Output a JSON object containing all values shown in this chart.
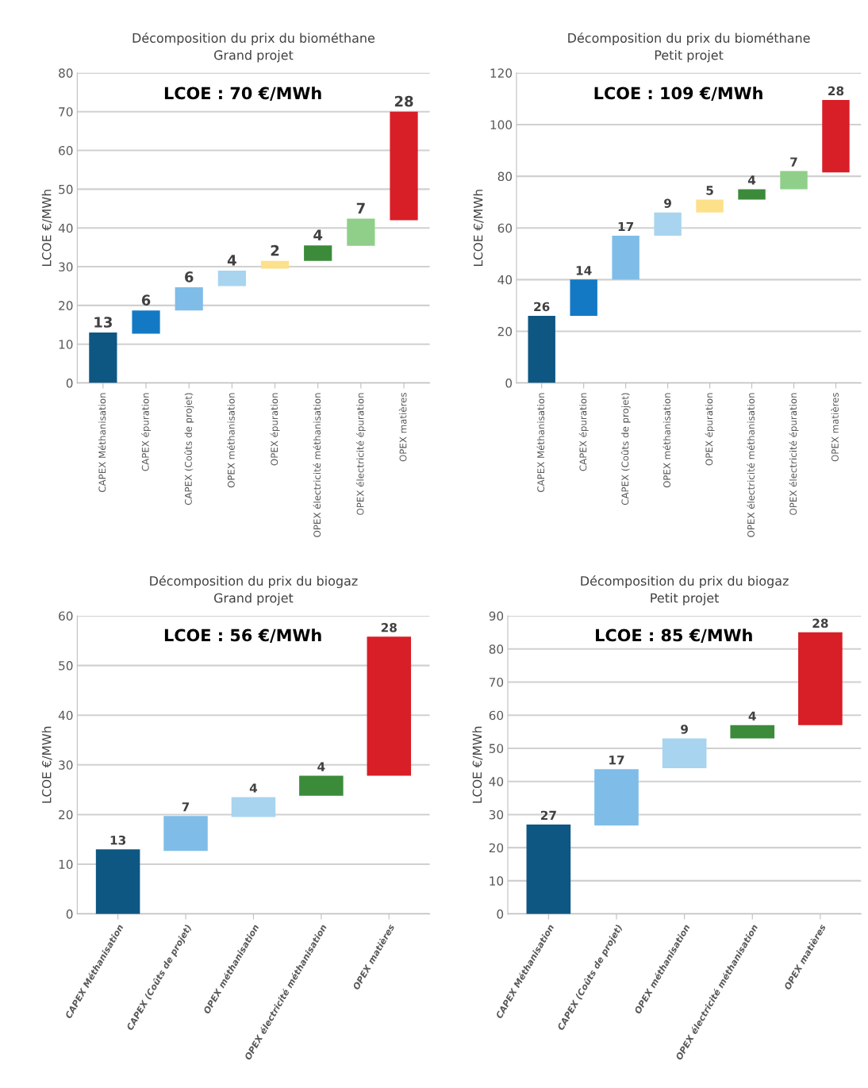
{
  "chart_data": [
    {
      "type": "bar",
      "title": "Décomposition du prix du biométhane",
      "subtitle": "Grand projet",
      "ylabel": "LCOE €/MWh",
      "categories": [
        "CAPEX Méthanisation",
        "CAPEX épuration",
        "CAPEX (Coûts de projet)",
        "OPEX méthanisation",
        "OPEX épuration",
        "OPEX électricité méthanisation",
        "OPEX électricité épuration",
        "OPEX matières"
      ],
      "values": [
        13,
        6,
        6,
        4,
        2,
        4,
        7,
        28
      ],
      "base": [
        0,
        12.7,
        18.7,
        25,
        29.5,
        31.5,
        35.4,
        42
      ],
      "colors": [
        "#0e5783",
        "#1479c4",
        "#7fbde8",
        "#a8d4ef",
        "#fde08a",
        "#3b8b3b",
        "#8fcf8a",
        "#d81e27"
      ],
      "data_labels": true,
      "ylim": [
        0,
        80
      ],
      "yticks": [
        0,
        10,
        20,
        30,
        40,
        50,
        60,
        70,
        80
      ],
      "grid": "y",
      "annotations": [
        "LCOE : 70 €/MWh"
      ]
    },
    {
      "type": "bar",
      "title": "Décomposition du prix du biométhane",
      "subtitle": "Petit projet",
      "ylabel": "LCOE €/MWh",
      "categories": [
        "CAPEX Méthanisation",
        "CAPEX épuration",
        "CAPEX (Coûts de projet)",
        "OPEX méthanisation",
        "OPEX épuration",
        "OPEX électricité méthanisation",
        "OPEX électricité épuration",
        "OPEX matières"
      ],
      "values": [
        26,
        14,
        17,
        9,
        5,
        4,
        7,
        28
      ],
      "base": [
        0,
        26,
        40,
        57,
        66,
        71,
        75,
        81.5
      ],
      "colors": [
        "#0e5783",
        "#1479c4",
        "#7fbde8",
        "#a8d4ef",
        "#fde08a",
        "#3b8b3b",
        "#8fcf8a",
        "#d81e27"
      ],
      "data_labels": true,
      "ylim": [
        0,
        120
      ],
      "yticks": [
        0,
        20,
        40,
        60,
        80,
        100,
        120
      ],
      "grid": "y",
      "annotations": [
        "LCOE : 109 €/MWh"
      ]
    },
    {
      "type": "bar",
      "title": "Décomposition du prix du biogaz",
      "subtitle": "Grand projet",
      "ylabel": "LCOE €/MWh",
      "categories": [
        "CAPEX Méthanisation",
        "CAPEX (Coûts de projet)",
        "OPEX méthanisation",
        "OPEX électricité méthanisation",
        "OPEX matières"
      ],
      "values": [
        13,
        7,
        4,
        4,
        28
      ],
      "base": [
        0,
        12.7,
        19.5,
        23.8,
        27.8
      ],
      "colors": [
        "#0e5783",
        "#7fbde8",
        "#a8d4ef",
        "#3b8b3b",
        "#d81e27"
      ],
      "data_labels": true,
      "ylim": [
        0,
        60
      ],
      "yticks": [
        0,
        10,
        20,
        30,
        40,
        50,
        60
      ],
      "grid": "y",
      "annotations": [
        "LCOE : 56 €/MWh"
      ]
    },
    {
      "type": "bar",
      "title": "Décomposition du prix du biogaz",
      "subtitle": "Petit projet",
      "ylabel": "LCOE €/MWh",
      "categories": [
        "CAPEX Méthanisation",
        "CAPEX (Coûts de projet)",
        "OPEX méthanisation",
        "OPEX électricité méthanisation",
        "OPEX matières"
      ],
      "values": [
        27,
        17,
        9,
        4,
        28
      ],
      "base": [
        0,
        26.7,
        44,
        53,
        57
      ],
      "colors": [
        "#0e5783",
        "#7fbde8",
        "#a8d4ef",
        "#3b8b3b",
        "#d81e27"
      ],
      "data_labels": true,
      "ylim": [
        0,
        90
      ],
      "yticks": [
        0,
        10,
        20,
        30,
        40,
        50,
        60,
        70,
        80,
        90
      ],
      "grid": "y",
      "annotations": [
        "LCOE : 85 €/MWh"
      ]
    }
  ]
}
